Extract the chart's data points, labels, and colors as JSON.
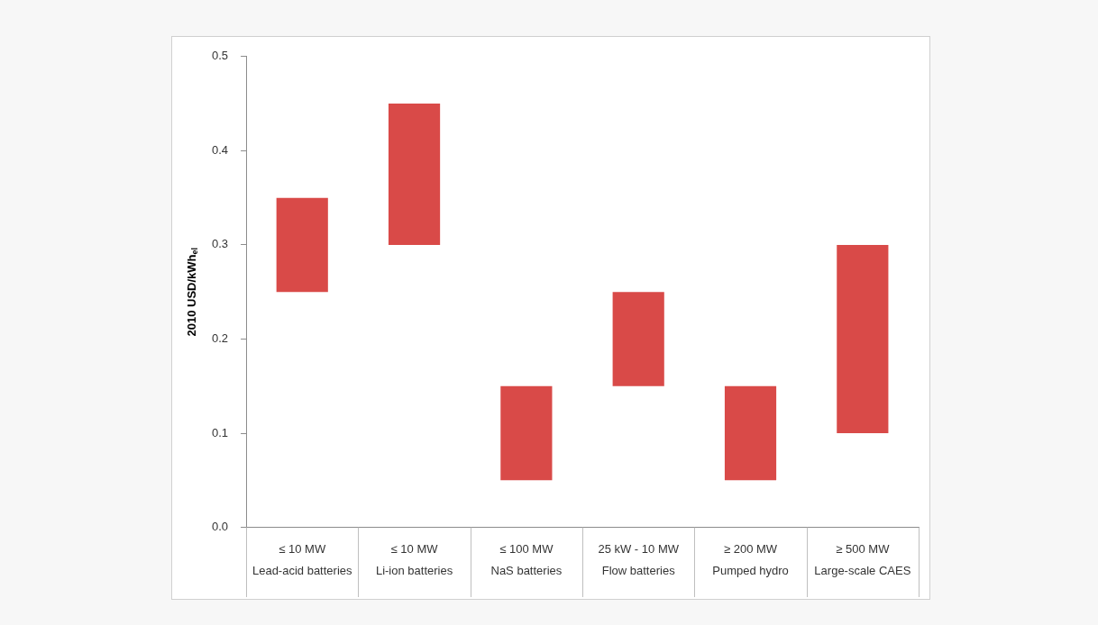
{
  "chart_data": {
    "type": "bar",
    "ylabel": "2010 USD/kWh$_{el}$",
    "categories": [
      "≤ 10 MW\nLead-acid batteries",
      "≤ 10 MW\nLi-ion batteries",
      "≤ 100 MW\nNaS batteries",
      "25 kW - 10 MW\nFlow batteries",
      "≥ 200 MW\nPumped hydro",
      "≥ 500 MW\nLarge-scale CAES"
    ],
    "base": [
      0.25,
      0.3,
      0.05,
      0.15,
      0.05,
      0.1
    ],
    "values": [
      0.1,
      0.15,
      0.1,
      0.1,
      0.1,
      0.2
    ],
    "color": "#d94a48",
    "ylim": [
      0,
      0.5
    ],
    "yticks": [
      {
        "value": 0,
        "label": "0.0"
      },
      0.1,
      0.2,
      0.3,
      0.4,
      0.5
    ],
    "legend": false
  }
}
